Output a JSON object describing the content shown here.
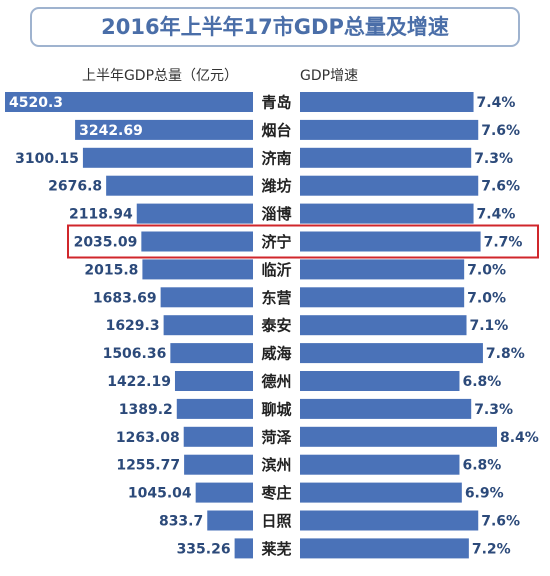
{
  "chart_data": {
    "type": "butterfly-bar",
    "title": "2016年上半年17市GDP总量及增速",
    "categories": [
      "青岛",
      "烟台",
      "济南",
      "潍坊",
      "淄博",
      "济宁",
      "临沂",
      "东营",
      "泰安",
      "威海",
      "德州",
      "聊城",
      "菏泽",
      "滨州",
      "枣庄",
      "日照",
      "莱芜"
    ],
    "series": [
      {
        "name": "上半年GDP总量（亿元）",
        "color": "#4a72b8",
        "values": [
          4520.3,
          3242.69,
          3100.15,
          2676.8,
          2118.94,
          2035.09,
          2015.8,
          1683.69,
          1629.3,
          1506.36,
          1422.19,
          1389.2,
          1263.08,
          1255.77,
          1045.04,
          833.7,
          335.26
        ]
      },
      {
        "name": "GDP增速",
        "color": "#4a72b8",
        "values": [
          7.4,
          7.6,
          7.3,
          7.6,
          7.4,
          7.7,
          7.0,
          7.0,
          7.1,
          7.8,
          6.8,
          7.3,
          8.4,
          6.8,
          6.9,
          7.6,
          7.2
        ],
        "value_labels": [
          "7.4%",
          "7.6%",
          "7.3%",
          "7.6%",
          "7.4%",
          "7.7%",
          "7.0%",
          "7.0%",
          "7.1%",
          "7.8%",
          "6.8%",
          "7.3%",
          "8.4%",
          "6.8%",
          "6.9%",
          "7.6%",
          "7.2%"
        ]
      }
    ],
    "highlight": "济宁"
  }
}
